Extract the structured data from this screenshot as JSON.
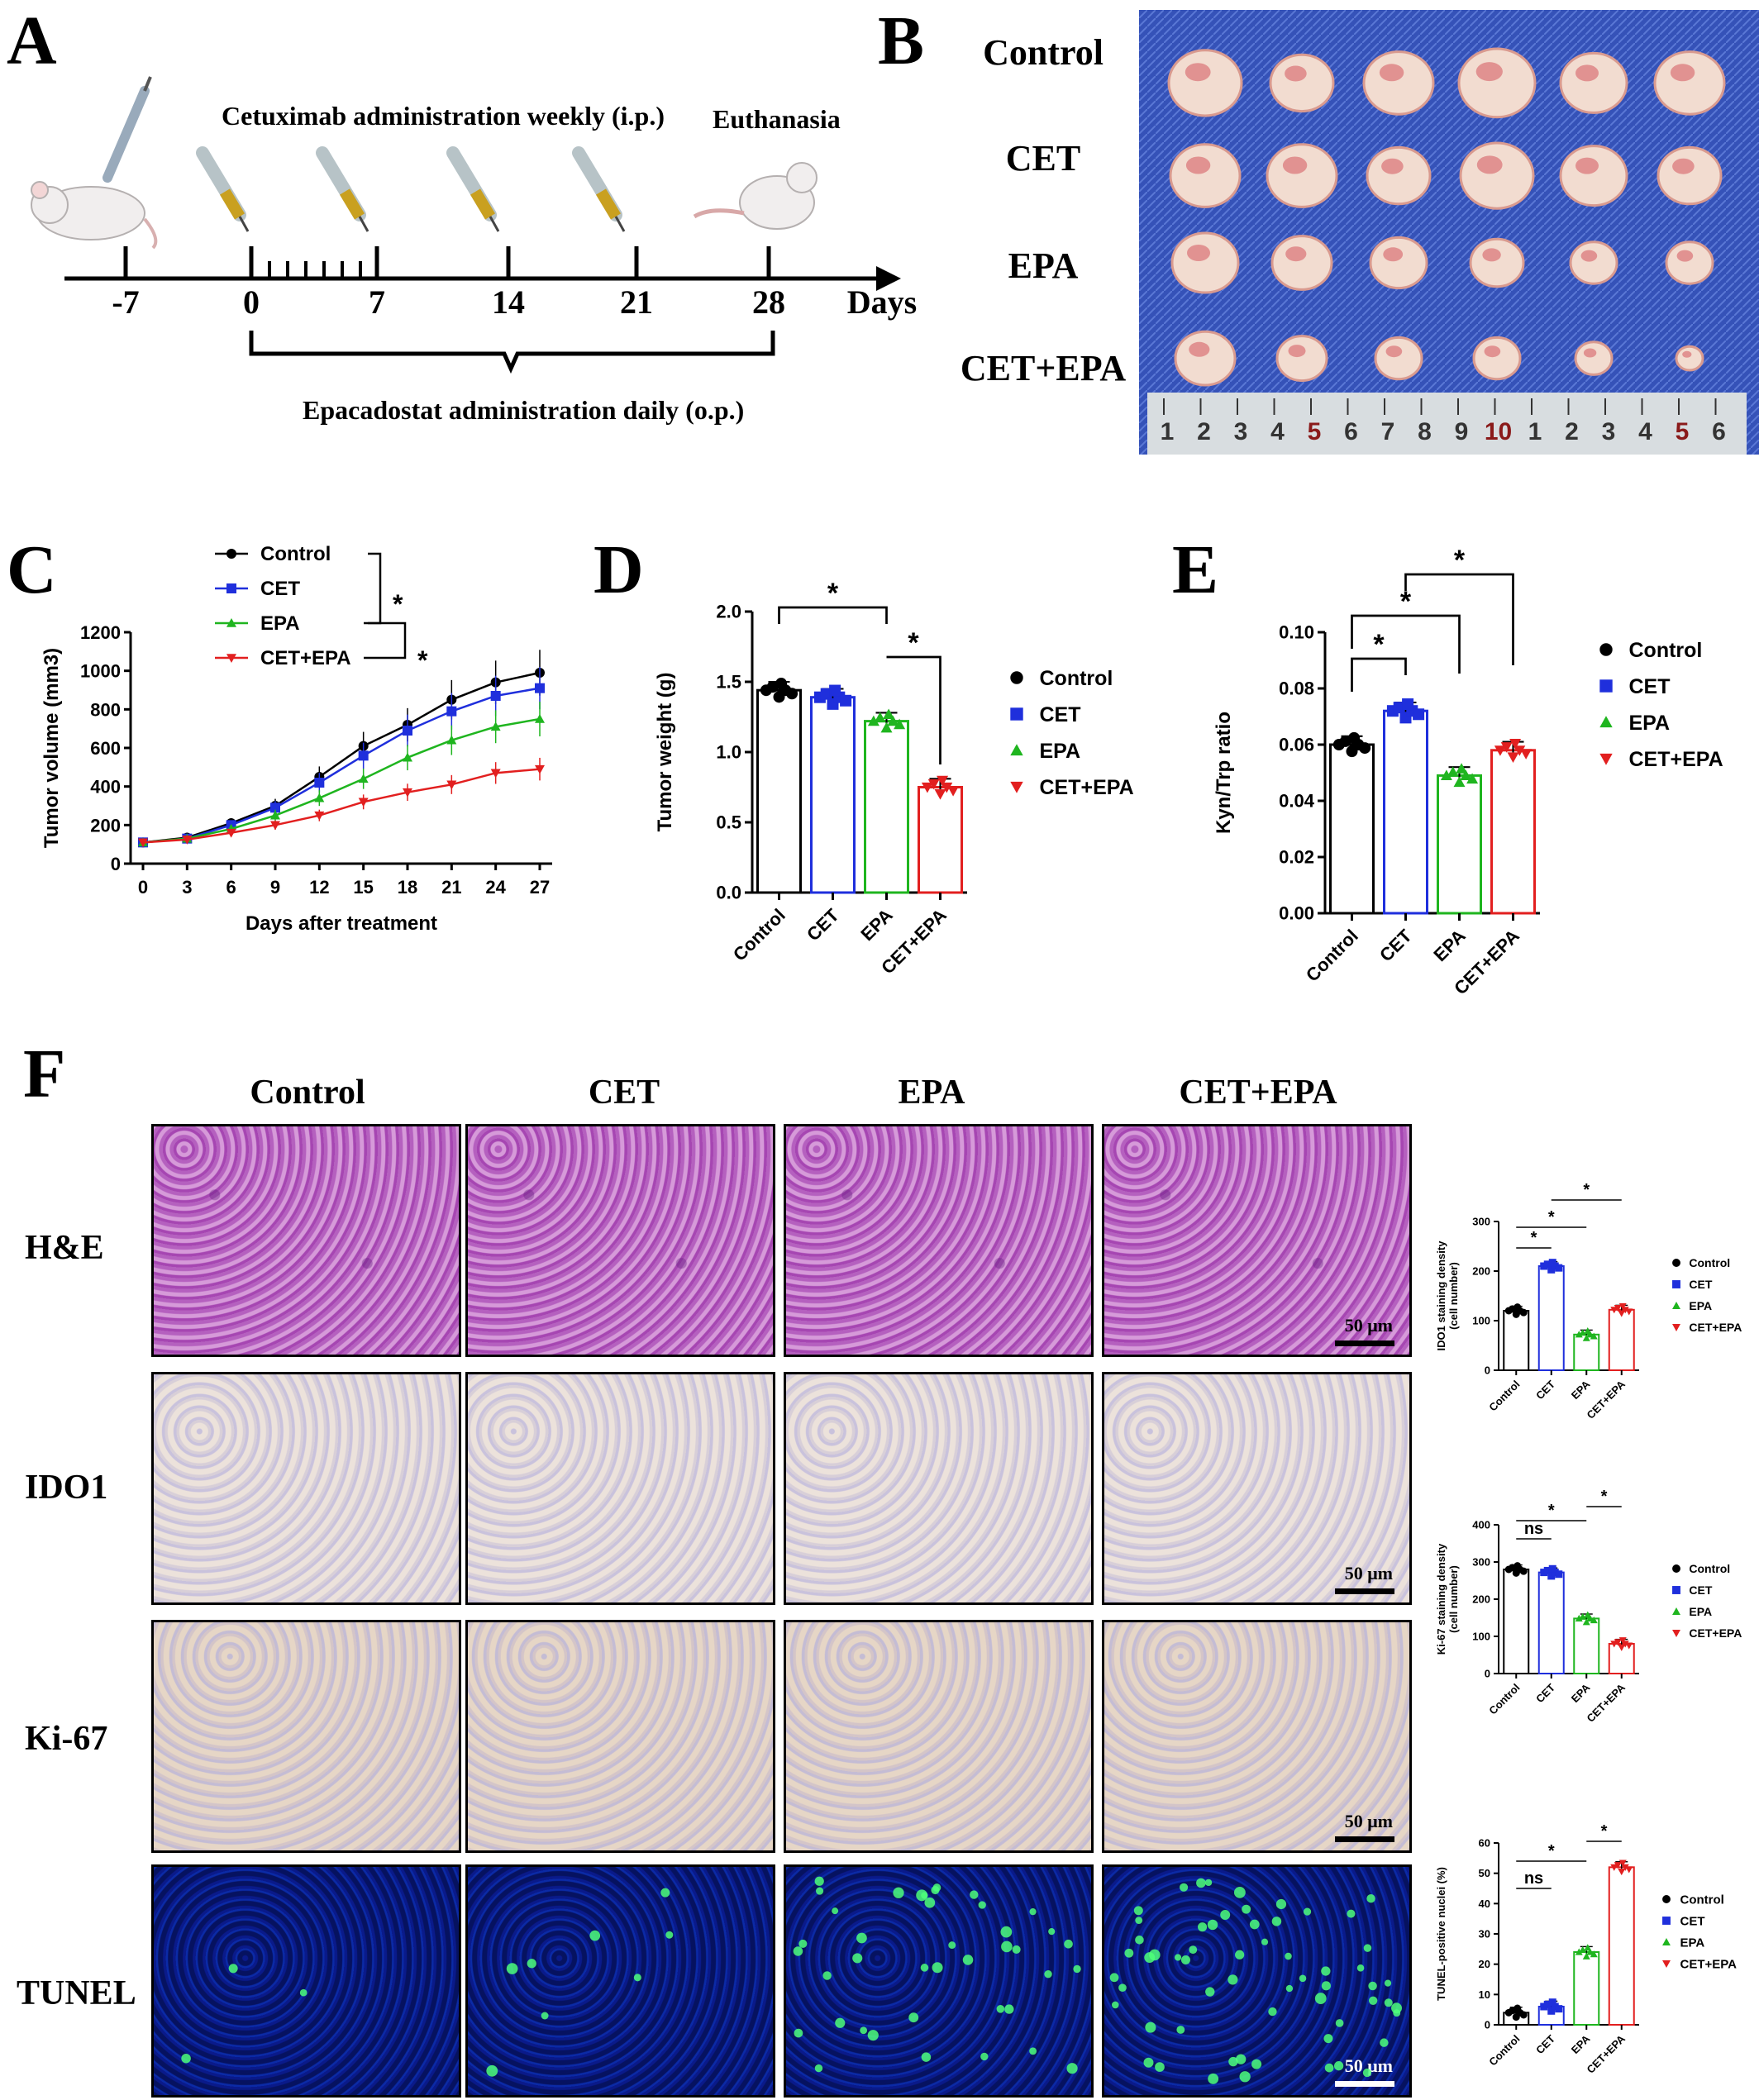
{
  "panels": {
    "A": "A",
    "B": "B",
    "C": "C",
    "D": "D",
    "E": "E",
    "F": "F"
  },
  "timeline": {
    "label_cetuximab": "Cetuximab administration weekly (i.p.)",
    "label_euthanasia": "Euthanasia",
    "label_epacadostat": "Epacadostat administration daily (o.p.)",
    "ticks": [
      "-7",
      "0",
      "7",
      "14",
      "21",
      "28"
    ],
    "axis_label": "Days"
  },
  "photo": {
    "rows": [
      "Control",
      "CET",
      "EPA",
      "CET+EPA"
    ],
    "ruler_numbers": [
      "1",
      "2",
      "3",
      "4",
      "5",
      "6",
      "7",
      "8",
      "9",
      "10",
      "1",
      "2",
      "3",
      "4",
      "5",
      "6"
    ]
  },
  "colors": {
    "control": "#000000",
    "cet": "#1f2fdc",
    "epa": "#1fb51f",
    "cetepa": "#e21f1f"
  },
  "chart_data": [
    {
      "id": "C",
      "type": "line",
      "xlabel": "Days after treatment",
      "ylabel": "Tumor volume (mm3)",
      "ylim": [
        0,
        1200
      ],
      "yticks": [
        "0",
        "200",
        "400",
        "600",
        "800",
        "1000",
        "1200"
      ],
      "x": [
        0,
        3,
        6,
        9,
        12,
        15,
        18,
        21,
        24,
        27
      ],
      "xticks": [
        "0",
        "3",
        "6",
        "9",
        "12",
        "15",
        "18",
        "21",
        "24",
        "27"
      ],
      "legend": [
        "Control",
        "CET",
        "EPA",
        "CET+EPA"
      ],
      "significance": [
        "*",
        "*"
      ],
      "series": [
        {
          "name": "Control",
          "values": [
            110,
            135,
            210,
            300,
            450,
            610,
            720,
            850,
            940,
            990
          ]
        },
        {
          "name": "CET",
          "values": [
            110,
            130,
            200,
            290,
            420,
            560,
            690,
            790,
            870,
            910
          ]
        },
        {
          "name": "EPA",
          "values": [
            110,
            130,
            180,
            250,
            340,
            440,
            550,
            640,
            710,
            750
          ]
        },
        {
          "name": "CET+EPA",
          "values": [
            110,
            125,
            160,
            200,
            250,
            320,
            370,
            410,
            470,
            490
          ]
        }
      ]
    },
    {
      "id": "D",
      "type": "bar",
      "ylabel": "Tumor weight (g)",
      "ylim": [
        0,
        2.0
      ],
      "yticks": [
        "0.0",
        "0.5",
        "1.0",
        "1.5",
        "2.0"
      ],
      "categories": [
        "Control",
        "CET",
        "EPA",
        "CET+EPA"
      ],
      "values": [
        1.44,
        1.39,
        1.22,
        0.75
      ],
      "legend": [
        "Control",
        "CET",
        "EPA",
        "CET+EPA"
      ],
      "significance": [
        "*",
        "*"
      ]
    },
    {
      "id": "E",
      "type": "bar",
      "ylabel": "Kyn/Trp ratio",
      "ylim": [
        0,
        0.1
      ],
      "yticks": [
        "0.00",
        "0.02",
        "0.04",
        "0.06",
        "0.08",
        "0.10"
      ],
      "categories": [
        "Control",
        "CET",
        "EPA",
        "CET+EPA"
      ],
      "values": [
        0.06,
        0.072,
        0.049,
        0.058
      ],
      "legend": [
        "Control",
        "CET",
        "EPA",
        "CET+EPA"
      ],
      "significance": [
        "*",
        "*",
        "*"
      ]
    },
    {
      "id": "F1",
      "type": "bar",
      "ylabel": "IDO1 staining density",
      "ylabel2": "(cell number)",
      "ylim": [
        0,
        300
      ],
      "yticks": [
        "0",
        "100",
        "200",
        "300"
      ],
      "categories": [
        "Control",
        "CET",
        "EPA",
        "CET+EPA"
      ],
      "values": [
        120,
        210,
        72,
        122
      ],
      "legend": [
        "Control",
        "CET",
        "EPA",
        "CET+EPA"
      ],
      "significance": [
        "*",
        "*",
        "*"
      ]
    },
    {
      "id": "F2",
      "type": "bar",
      "ylabel": "Ki-67 staining density",
      "ylabel2": "(cell number)",
      "ylim": [
        0,
        400
      ],
      "yticks": [
        "0",
        "100",
        "200",
        "300",
        "400"
      ],
      "categories": [
        "Control",
        "CET",
        "EPA",
        "CET+EPA"
      ],
      "values": [
        280,
        272,
        148,
        80
      ],
      "legend": [
        "Control",
        "CET",
        "EPA",
        "CET+EPA"
      ],
      "significance": [
        "ns",
        "*",
        "*"
      ]
    },
    {
      "id": "F3",
      "type": "bar",
      "ylabel": "TUNEL-positive nuclei (%)",
      "ylim": [
        0,
        60
      ],
      "yticks": [
        "0",
        "10",
        "20",
        "30",
        "40",
        "50",
        "60"
      ],
      "categories": [
        "Control",
        "CET",
        "EPA",
        "CET+EPA"
      ],
      "values": [
        4,
        6,
        24,
        52
      ],
      "legend": [
        "Control",
        "CET",
        "EPA",
        "CET+EPA"
      ],
      "significance": [
        "ns",
        "*",
        "*"
      ]
    }
  ],
  "micro": {
    "columns": [
      "Control",
      "CET",
      "EPA",
      "CET+EPA"
    ],
    "rows": [
      "H&E",
      "IDO1",
      "Ki-67",
      "TUNEL"
    ],
    "scale": "50 μm"
  }
}
